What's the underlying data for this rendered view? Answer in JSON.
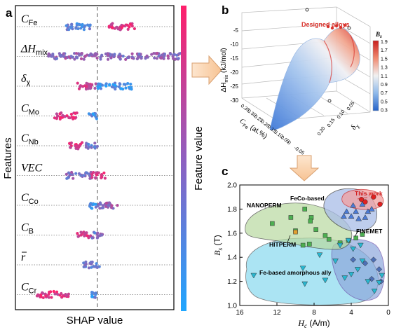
{
  "panel_labels": {
    "a": "a",
    "b": "b",
    "c": "c"
  },
  "chart_data": [
    {
      "type": "scatter",
      "panel": "a",
      "xlabel": "SHAP value",
      "ylabel": "Features",
      "colorbar_label": "Feature value",
      "colors": {
        "high": "#ff1f6b",
        "low": "#1fa6ff",
        "dashed_zero": "#555555"
      },
      "features": [
        {
          "main": "C",
          "sub": "Fe",
          "clusters": [
            [
              -0.55,
              -0.12,
              0.25
            ],
            [
              0.2,
              0.65,
              0.85
            ]
          ]
        },
        {
          "main": "ΔH",
          "sub": "mix",
          "clusters": [
            [
              -0.85,
              0.0,
              0.5
            ],
            [
              0.05,
              1.45,
              0.5
            ]
          ]
        },
        {
          "main": "δ",
          "sub": "χ",
          "clusters": [
            [
              -0.35,
              -0.02,
              0.75
            ],
            [
              0.0,
              0.6,
              0.15
            ]
          ]
        },
        {
          "main": "C",
          "sub": "Mo",
          "clusters": [
            [
              -0.75,
              -0.35,
              0.85
            ],
            [
              -0.15,
              0.0,
              0.2
            ]
          ]
        },
        {
          "main": "C",
          "sub": "Nb",
          "clusters": [
            [
              -0.5,
              -0.25,
              0.8
            ],
            [
              -0.2,
              0.0,
              0.35
            ]
          ]
        },
        {
          "main": "VEC",
          "sub": "",
          "clusters": [
            [
              -0.55,
              -0.1,
              0.45
            ],
            [
              -0.1,
              0.15,
              0.85
            ]
          ]
        },
        {
          "main": "C",
          "sub": "Co",
          "clusters": [
            [
              -0.15,
              0.0,
              0.2
            ],
            [
              0.0,
              0.35,
              0.5
            ]
          ]
        },
        {
          "main": "C",
          "sub": "B",
          "clusters": [
            [
              -0.35,
              -0.1,
              0.85
            ],
            [
              -0.1,
              0.1,
              0.4
            ]
          ]
        },
        {
          "main": "r",
          "sub": "",
          "overbar": true,
          "clusters": [
            [
              -0.25,
              0.05,
              0.35
            ]
          ]
        },
        {
          "main": "C",
          "sub": "Cr",
          "clusters": [
            [
              -1.05,
              -0.5,
              0.85
            ],
            [
              -0.1,
              0.0,
              0.2
            ]
          ]
        }
      ]
    },
    {
      "type": "surface3d",
      "panel": "b",
      "ylabel": "ΔH",
      "ylabel_sub": "mix",
      "ylabel_unit": " (kJ/mol)",
      "xlabel": "C",
      "xlabel_sub": "Fe",
      "xlabel_unit": " (at.%)",
      "zlabel": "δ",
      "zlabel_sub": "χ",
      "annotation": "Designed alloys",
      "vertical_ticks": [
        "-5",
        "-10",
        "-15",
        "-20",
        "-25",
        "-30"
      ],
      "cfe_ticks": [
        "0.35",
        "0.30",
        "0.25",
        "0.20",
        "0.15",
        "0.10",
        "0.05",
        "0",
        "-0.05"
      ],
      "dx_ticks": [
        "0.05",
        "0.10",
        "0.15",
        "0.20"
      ],
      "colorbar_title": "B",
      "colorbar_title_sub": "s",
      "colorbar_ticks": [
        "1.9",
        "1.7",
        "1.5",
        "1.3",
        "1.1",
        "0.9",
        "0.7",
        "0.5",
        "0.3"
      ]
    },
    {
      "type": "scatter",
      "panel": "c",
      "xlabel": "H",
      "xlabel_sub": "c",
      "xlabel_unit": " (A/m)",
      "ylabel": "B",
      "ylabel_sub": "s",
      "ylabel_unit": " (T)",
      "xlim": [
        16,
        0
      ],
      "ylim": [
        1.0,
        2.0
      ],
      "x_ticks": [
        "16",
        "12",
        "8",
        "4",
        "0"
      ],
      "y_ticks": [
        "1.0",
        "1.2",
        "1.4",
        "1.6",
        "1.8",
        "2.0"
      ],
      "groups": [
        {
          "name": "FeCo-based",
          "marker": "triangle-up",
          "color": "#4b7bd6",
          "points": [
            [
              4.5,
              1.78
            ],
            [
              3.8,
              1.83
            ],
            [
              2.8,
              1.84
            ],
            [
              4.0,
              1.74
            ],
            [
              3.2,
              1.72
            ],
            [
              2.2,
              1.78
            ],
            [
              1.8,
              1.8
            ],
            [
              3.5,
              1.78
            ],
            [
              2.5,
              1.73
            ],
            [
              4.8,
              1.74
            ]
          ]
        },
        {
          "name": "NANOPERM",
          "marker": "square",
          "color": "#4caf50",
          "points": [
            [
              12.5,
              1.68
            ],
            [
              10.5,
              1.73
            ],
            [
              9.0,
              1.8
            ],
            [
              8.3,
              1.73
            ],
            [
              10.0,
              1.62
            ],
            [
              7.8,
              1.63
            ],
            [
              6.8,
              1.58
            ],
            [
              6.4,
              1.55
            ],
            [
              9.2,
              1.5
            ],
            [
              8.5,
              1.51
            ],
            [
              5.2,
              1.52
            ],
            [
              4.3,
              1.54
            ],
            [
              3.5,
              1.56
            ],
            [
              2.8,
              1.59
            ],
            [
              8.4,
              1.7
            ]
          ]
        },
        {
          "name": "HITPERM",
          "marker": "square",
          "color": "#e0a030",
          "points": [
            [
              10.0,
              1.61
            ]
          ]
        },
        {
          "name": "FINEMET",
          "marker": "diamond",
          "color": "#4d6fb5",
          "points": [
            [
              3.8,
              1.38
            ],
            [
              2.5,
              1.35
            ],
            [
              1.6,
              1.38
            ],
            [
              1.0,
              1.3
            ],
            [
              0.8,
              1.2
            ],
            [
              1.8,
              1.22
            ]
          ]
        },
        {
          "name": "Fe-based amorphous ally",
          "marker": "triangle-down",
          "color": "#28b7d0",
          "points": [
            [
              14.5,
              1.25
            ],
            [
              9.2,
              1.31
            ],
            [
              5.2,
              1.5
            ],
            [
              4.3,
              1.54
            ],
            [
              3.8,
              1.47
            ],
            [
              3.0,
              1.5
            ],
            [
              7.4,
              1.42
            ],
            [
              5.7,
              1.37
            ],
            [
              9.0,
              1.18
            ],
            [
              6.8,
              1.21
            ],
            [
              4.7,
              1.23
            ],
            [
              4.0,
              1.26
            ],
            [
              3.3,
              1.3
            ],
            [
              2.8,
              1.37
            ],
            [
              2.2,
              1.2
            ],
            [
              1.5,
              1.12
            ],
            [
              1.0,
              1.19
            ],
            [
              0.7,
              1.25
            ]
          ]
        },
        {
          "name": "This work",
          "marker": "circle",
          "color": "#e02020",
          "points": [
            [
              2.5,
              1.86
            ],
            [
              1.6,
              1.9
            ],
            [
              0.9,
              1.84
            ],
            [
              2.9,
              1.88
            ]
          ]
        }
      ]
    }
  ]
}
